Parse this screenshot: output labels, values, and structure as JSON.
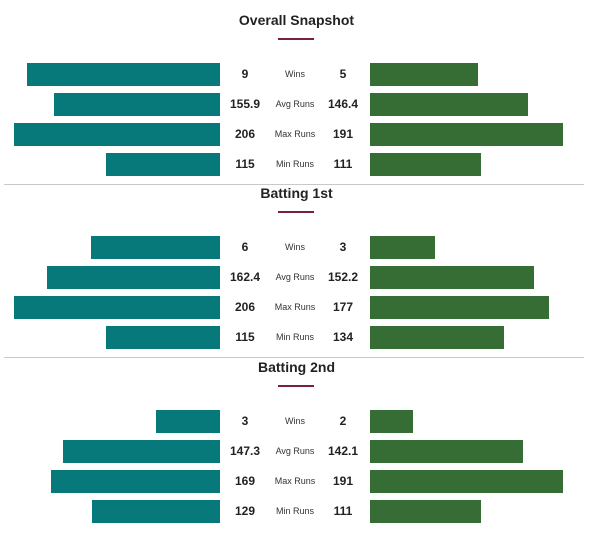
{
  "colors": {
    "left_team": "#07797a",
    "right_team": "#356d35",
    "accent": "#7a1f3d",
    "divider": "#c8c8c8"
  },
  "chart_data": [
    {
      "type": "bar",
      "title": "Overall Snapshot",
      "categories": [
        "Wins",
        "Avg Runs",
        "Max Runs",
        "Min Runs"
      ],
      "series": [
        {
          "values": [
            9,
            155.9,
            206,
            115
          ]
        },
        {
          "values": [
            5,
            146.4,
            191,
            111
          ]
        }
      ],
      "display": {
        "left": [
          "9",
          "155.9",
          "206",
          "115"
        ],
        "right": [
          "5",
          "146.4",
          "191",
          "111"
        ]
      }
    },
    {
      "type": "bar",
      "title": "Batting 1st",
      "categories": [
        "Wins",
        "Avg Runs",
        "Max Runs",
        "Min Runs"
      ],
      "series": [
        {
          "values": [
            6,
            162.4,
            206,
            115
          ]
        },
        {
          "values": [
            3,
            152.2,
            177,
            134
          ]
        }
      ],
      "display": {
        "left": [
          "6",
          "162.4",
          "206",
          "115"
        ],
        "right": [
          "3",
          "152.2",
          "177",
          "134"
        ]
      }
    },
    {
      "type": "bar",
      "title": "Batting 2nd",
      "categories": [
        "Wins",
        "Avg Runs",
        "Max Runs",
        "Min Runs"
      ],
      "series": [
        {
          "values": [
            3,
            147.3,
            169,
            129
          ]
        },
        {
          "values": [
            2,
            142.1,
            191,
            111
          ]
        }
      ],
      "display": {
        "left": [
          "3",
          "147.3",
          "169",
          "129"
        ],
        "right": [
          "2",
          "142.1",
          "191",
          "111"
        ]
      }
    }
  ]
}
